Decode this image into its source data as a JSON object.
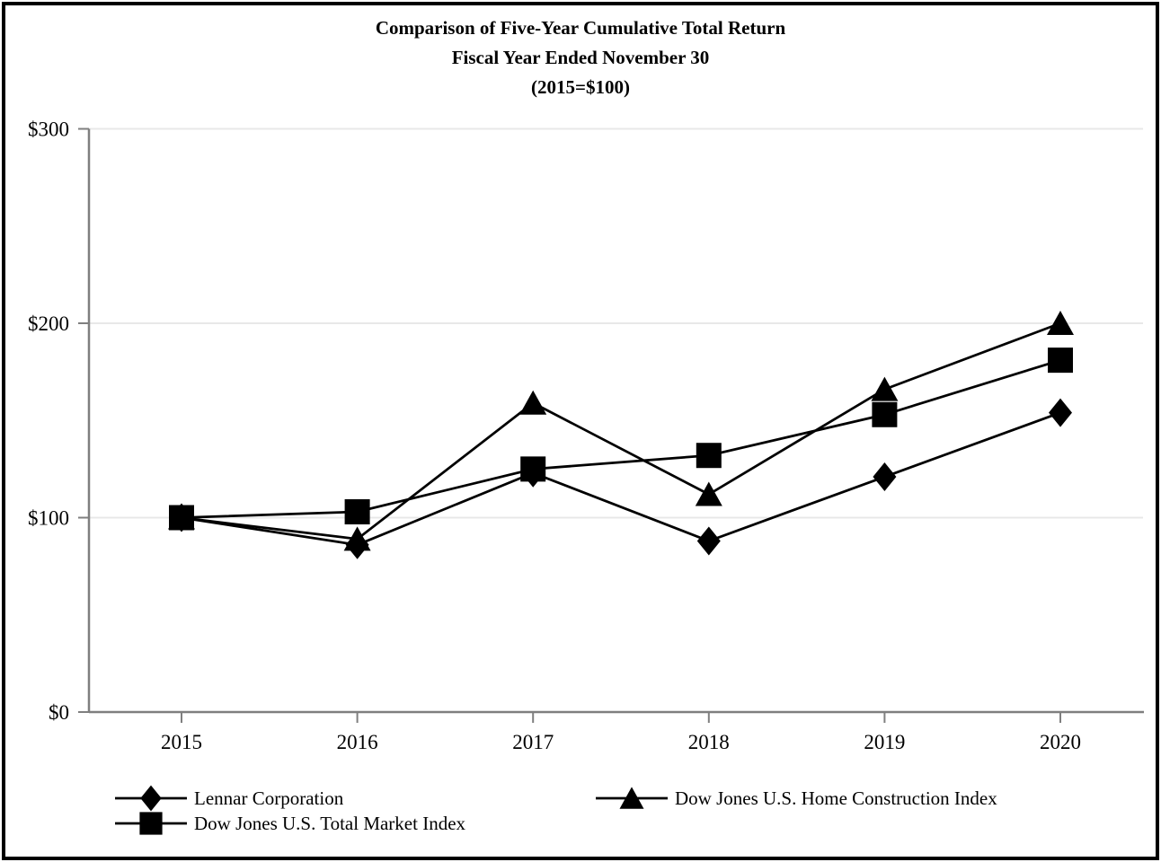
{
  "page": {
    "background": "#ffffff",
    "border_color": "#000000"
  },
  "chart_data": {
    "type": "line",
    "title": "Comparison of Five-Year Cumulative Total Return",
    "subtitle": "Fiscal Year Ended November 30",
    "baseline_note": "(2015=$100)",
    "x_categories": [
      "2015",
      "2016",
      "2017",
      "2018",
      "2019",
      "2020"
    ],
    "series": [
      {
        "name": "Lennar Corporation",
        "marker": "diamond",
        "values": [
          100,
          86,
          123,
          88,
          121,
          154
        ]
      },
      {
        "name": "Dow Jones U.S. Total Market Index",
        "marker": "square",
        "values": [
          100,
          103,
          125,
          132,
          153,
          181
        ]
      },
      {
        "name": "Dow Jones U.S. Home Construction Index",
        "marker": "triangle",
        "values": [
          100,
          89,
          159,
          112,
          166,
          200
        ]
      }
    ],
    "ylim": [
      0,
      300
    ],
    "yticks": [
      {
        "label": "$0",
        "value": 0
      },
      {
        "label": "$100",
        "value": 100
      },
      {
        "label": "$200",
        "value": 200
      },
      {
        "label": "$300",
        "value": 300
      }
    ],
    "grid": "horizontal",
    "legend_position": "bottom",
    "colors": {
      "series": "#000000",
      "axis": "#7f7f7f",
      "gridline": "#e8e8e8",
      "text": "#000000"
    }
  }
}
